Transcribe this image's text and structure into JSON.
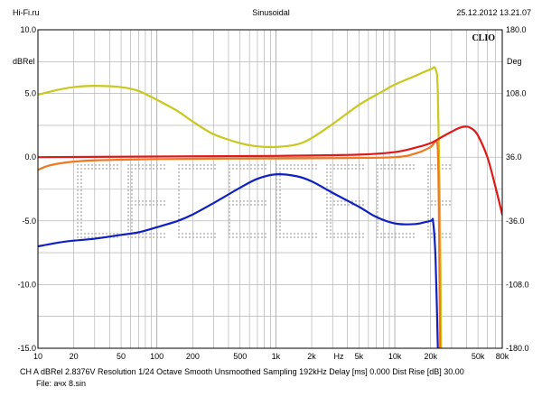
{
  "header": {
    "left": "Hi-Fi.ru",
    "center": "Sinusoidal",
    "right": "25.12.2012 13.21.07"
  },
  "footer": {
    "line1": "CH A   dBRel 2.8376V  Resolution 1/24 Octave   Smooth Unsmoothed   Sampling 192kHz   Delay [ms] 0.000     Dist Rise [dB] 30.00",
    "line2": "File: ачх 8.sin"
  },
  "logo": "CLIO",
  "colors": {
    "yellow": "#c8c81e",
    "orange": "#f07820",
    "red": "#e01818",
    "blue": "#1020c0",
    "grid": "#a8a8a8",
    "watermark": "#c4c4c4"
  },
  "chart_data": {
    "type": "line",
    "x_scale": "log",
    "xlim": [
      10,
      80000
    ],
    "ylim": [
      -15,
      10
    ],
    "y2lim": [
      -180,
      180
    ],
    "ylabel": "dBRel",
    "y2label": "Deg",
    "xunit_label": "Hz",
    "grid": true,
    "x_ticks": [
      {
        "v": 10,
        "label": "10"
      },
      {
        "v": 20,
        "label": "20"
      },
      {
        "v": 50,
        "label": "50"
      },
      {
        "v": 100,
        "label": "100"
      },
      {
        "v": 200,
        "label": "200"
      },
      {
        "v": 500,
        "label": "500"
      },
      {
        "v": 1000,
        "label": "1k"
      },
      {
        "v": 2000,
        "label": "2k"
      },
      {
        "v": 5000,
        "label": "5k"
      },
      {
        "v": 10000,
        "label": "10k"
      },
      {
        "v": 20000,
        "label": "20k"
      },
      {
        "v": 50000,
        "label": "50k"
      },
      {
        "v": 80000,
        "label": "80k"
      }
    ],
    "y_ticks": [
      {
        "v": 10,
        "label": "10.0"
      },
      {
        "v": 5,
        "label": "5.0"
      },
      {
        "v": 0,
        "label": "0.0"
      },
      {
        "v": -5,
        "label": "-5.0"
      },
      {
        "v": -10,
        "label": "-10.0"
      },
      {
        "v": -15,
        "label": "-15.0"
      }
    ],
    "y2_ticks": [
      {
        "v": 180,
        "label": "180.0"
      },
      {
        "v": 108,
        "label": "108.0"
      },
      {
        "v": 36,
        "label": "36.0"
      },
      {
        "v": -36,
        "label": "-36.0"
      },
      {
        "v": -108,
        "label": "-108.0"
      },
      {
        "v": -180,
        "label": "-180.0"
      }
    ],
    "series": [
      {
        "color": "#c8c81e",
        "points": [
          [
            10,
            4.9
          ],
          [
            15,
            5.3
          ],
          [
            20,
            5.5
          ],
          [
            30,
            5.6
          ],
          [
            50,
            5.5
          ],
          [
            70,
            5.2
          ],
          [
            100,
            4.5
          ],
          [
            150,
            3.6
          ],
          [
            200,
            2.8
          ],
          [
            300,
            1.8
          ],
          [
            500,
            1.1
          ],
          [
            700,
            0.85
          ],
          [
            1000,
            0.8
          ],
          [
            1500,
            1.0
          ],
          [
            2000,
            1.5
          ],
          [
            3000,
            2.6
          ],
          [
            5000,
            4.1
          ],
          [
            8000,
            5.2
          ],
          [
            10000,
            5.7
          ],
          [
            15000,
            6.4
          ],
          [
            20000,
            6.9
          ],
          [
            22000,
            6.9
          ],
          [
            23000,
            5.0
          ],
          [
            24000,
            -5.0
          ],
          [
            24500,
            -15.0
          ]
        ]
      },
      {
        "color": "#f07820",
        "points": [
          [
            10,
            -1.0
          ],
          [
            12,
            -0.7
          ],
          [
            15,
            -0.5
          ],
          [
            20,
            -0.35
          ],
          [
            30,
            -0.25
          ],
          [
            50,
            -0.2
          ],
          [
            100,
            -0.15
          ],
          [
            300,
            -0.12
          ],
          [
            1000,
            -0.1
          ],
          [
            3000,
            -0.08
          ],
          [
            10000,
            0.0
          ],
          [
            15000,
            0.3
          ],
          [
            20000,
            0.8
          ],
          [
            22000,
            1.2
          ],
          [
            23000,
            0.5
          ],
          [
            23500,
            -5.0
          ],
          [
            24000,
            -15.0
          ]
        ]
      },
      {
        "color": "#e01818",
        "points": [
          [
            10,
            0.0
          ],
          [
            100,
            0.05
          ],
          [
            1000,
            0.1
          ],
          [
            5000,
            0.2
          ],
          [
            10000,
            0.4
          ],
          [
            15000,
            0.75
          ],
          [
            20000,
            1.1
          ],
          [
            25000,
            1.6
          ],
          [
            30000,
            2.0
          ],
          [
            35000,
            2.3
          ],
          [
            40000,
            2.4
          ],
          [
            45000,
            2.2
          ],
          [
            50000,
            1.7
          ],
          [
            60000,
            0.0
          ],
          [
            70000,
            -2.3
          ],
          [
            80000,
            -4.5
          ]
        ]
      },
      {
        "color": "#1020c0",
        "points": [
          [
            10,
            -7.0
          ],
          [
            15,
            -6.7
          ],
          [
            20,
            -6.55
          ],
          [
            30,
            -6.4
          ],
          [
            50,
            -6.1
          ],
          [
            70,
            -5.9
          ],
          [
            100,
            -5.5
          ],
          [
            150,
            -5.0
          ],
          [
            200,
            -4.5
          ],
          [
            300,
            -3.6
          ],
          [
            500,
            -2.4
          ],
          [
            700,
            -1.7
          ],
          [
            1000,
            -1.35
          ],
          [
            1500,
            -1.5
          ],
          [
            2000,
            -1.9
          ],
          [
            3000,
            -2.8
          ],
          [
            5000,
            -3.9
          ],
          [
            7000,
            -4.7
          ],
          [
            10000,
            -5.2
          ],
          [
            15000,
            -5.25
          ],
          [
            20000,
            -5.0
          ],
          [
            21000,
            -5.1
          ],
          [
            22000,
            -8.0
          ],
          [
            23000,
            -15.0
          ]
        ]
      }
    ]
  }
}
